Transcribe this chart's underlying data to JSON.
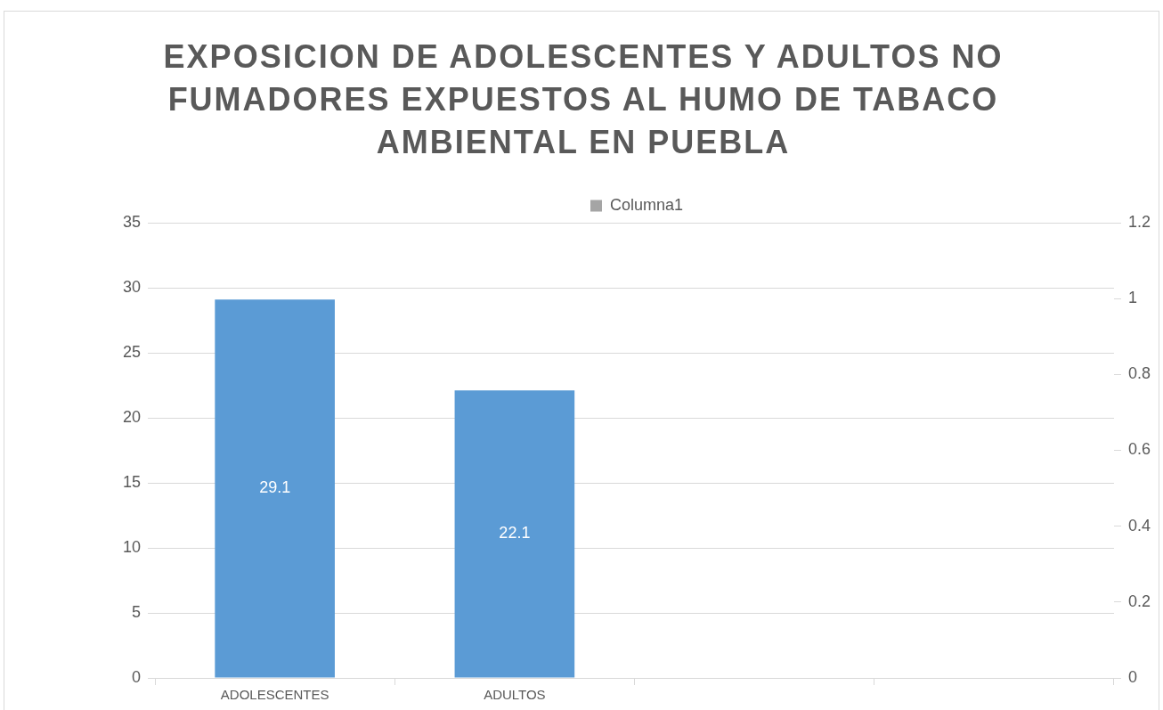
{
  "chart_data": {
    "type": "bar",
    "title": "EXPOSICION DE ADOLESCENTES Y ADULTOS NO FUMADORES EXPUESTOS AL HUMO DE TABACO AMBIENTAL EN  PUEBLA",
    "categories": [
      "ADOLESCENTES",
      "ADULTOS",
      null,
      null
    ],
    "series": [
      {
        "color": "#5b9bd5",
        "values": [
          29.1,
          22.1,
          null,
          null
        ]
      },
      {
        "name": "Columna1",
        "color": "#a5a5a5",
        "values": [
          null,
          null,
          null,
          null
        ],
        "axis": "y2"
      }
    ],
    "ylim": [
      0,
      35
    ],
    "yticks": [
      0,
      5,
      10,
      15,
      20,
      25,
      30,
      35
    ],
    "y2lim": [
      0,
      1.2
    ],
    "y2ticks": [
      0,
      0.2,
      0.4,
      0.6,
      0.8,
      1,
      1.2
    ],
    "grid": "y",
    "legend": "top",
    "data_labels": true
  }
}
